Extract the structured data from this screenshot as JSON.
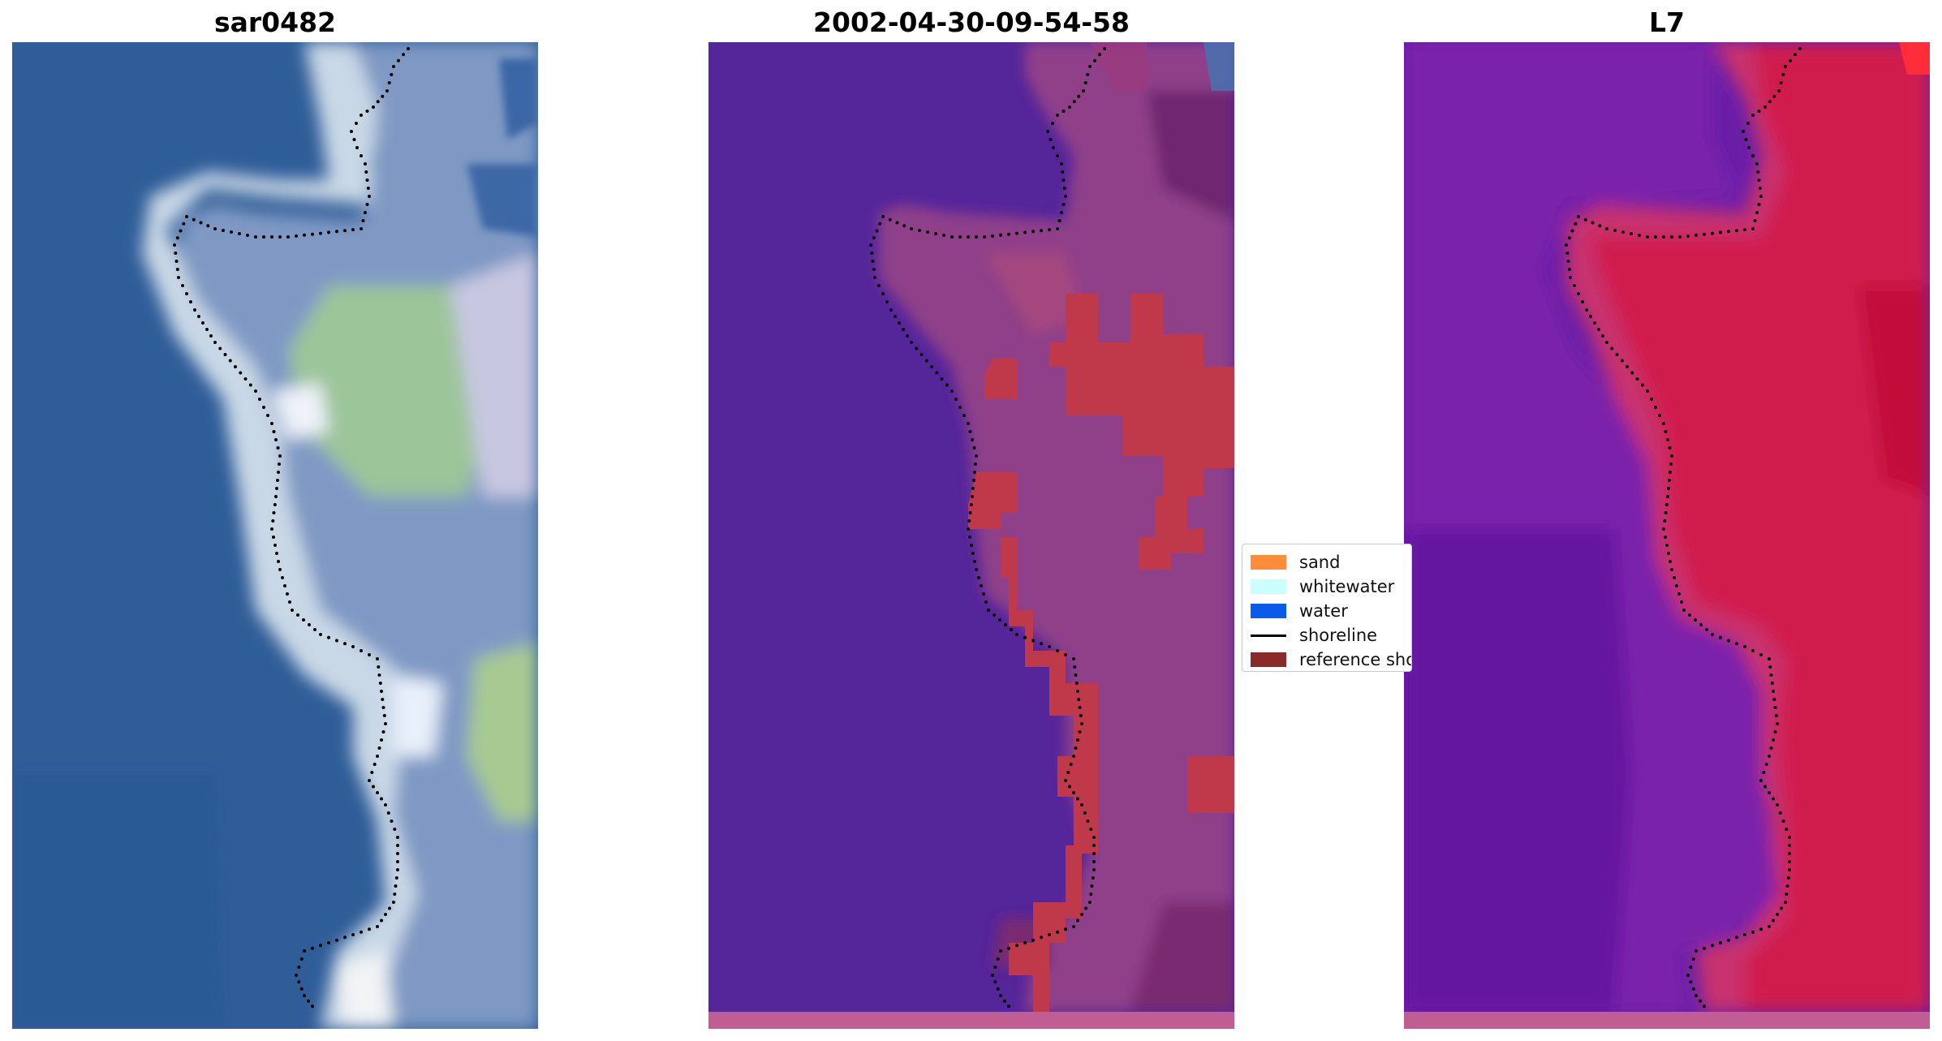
{
  "panels": [
    {
      "title": "sar0482"
    },
    {
      "title": "2002-04-30-09-54-58"
    },
    {
      "title": "L7"
    }
  ],
  "legend": {
    "items": [
      {
        "label": "sand",
        "color": "#ff8c3a",
        "kind": "patch"
      },
      {
        "label": "whitewater",
        "color": "#ccffff",
        "kind": "patch"
      },
      {
        "label": "water",
        "color": "#0b5bea",
        "kind": "patch"
      },
      {
        "label": "shoreline",
        "color": "#000000",
        "kind": "line"
      },
      {
        "label": "reference shoreline",
        "color": "#8b2a2a",
        "kind": "patch"
      }
    ]
  },
  "colors": {
    "sea_rgb": "#2f5d98",
    "sea_classified": "#55259a",
    "land_classified": "#9a3f86",
    "sand_overlay": "#c0394a",
    "bottom_strip": "#c05e93",
    "swir_water": "#6a1ea8",
    "swir_land": "#cc1c52",
    "shoreline_dots": "#000000"
  }
}
